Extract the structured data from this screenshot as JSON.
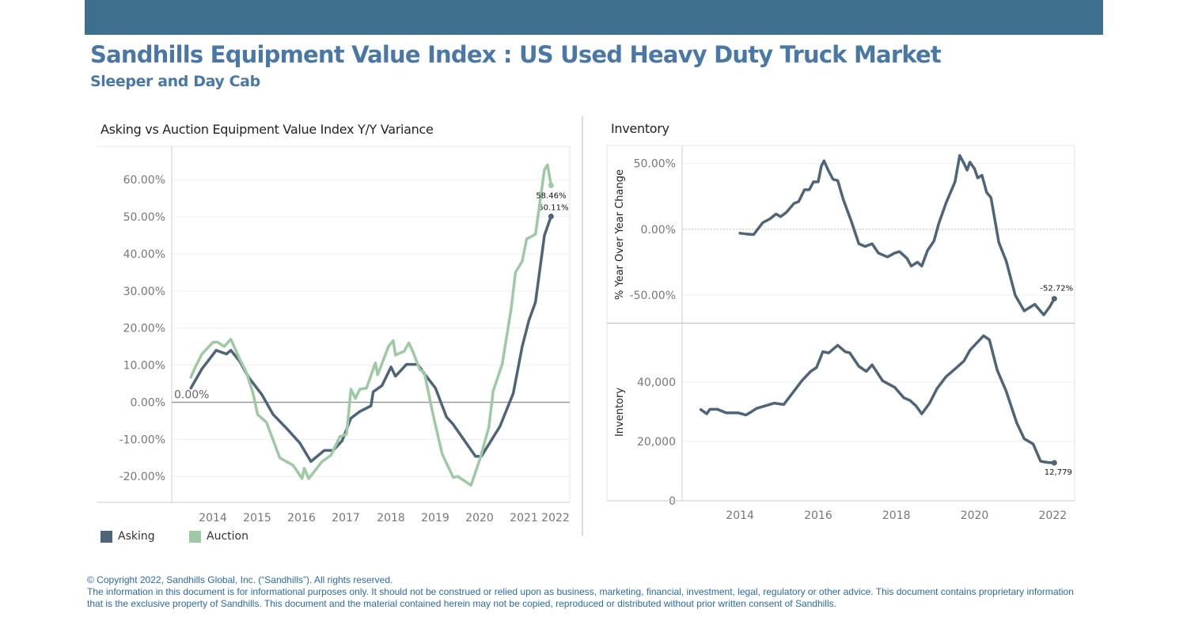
{
  "header": {
    "title": "Sandhills Equipment Value Index : US Used Heavy Duty Truck Market",
    "subtitle": "Sleeper and Day Cab"
  },
  "colors": {
    "topbar": "#3e6f8f",
    "asking": "#4e6479",
    "auction": "#9dc9a3",
    "title": "#4a78a6"
  },
  "chart_data": [
    {
      "type": "line",
      "title": "Asking vs Auction Equipment Value Index Y/Y Variance",
      "xlabel": "",
      "ylabel": "",
      "xlim": [
        2013.07,
        2022.02
      ],
      "ylim": [
        -27,
        69
      ],
      "x_ticks": [
        "2014",
        "2015",
        "2016",
        "2017",
        "2018",
        "2019",
        "2020",
        "2021",
        "2022"
      ],
      "y_ticks": [
        -20,
        -10,
        0,
        10,
        20,
        30,
        40,
        50,
        60
      ],
      "y_tick_labels": [
        "-20.00%",
        "-10.00%",
        "0.00%",
        "10.00%",
        "20.00%",
        "30.00%",
        "40.00%",
        "50.00%",
        "60.00%"
      ],
      "reference_line": {
        "value": 0,
        "label": "0.00%"
      },
      "grid": true,
      "legend": "bottom-left",
      "series": [
        {
          "name": "Asking",
          "color": "#4e6479",
          "end_label": "50.11%",
          "points": [
            [
              2013.5,
              3.8
            ],
            [
              2013.75,
              9
            ],
            [
              2014.07,
              14
            ],
            [
              2014.3,
              13
            ],
            [
              2014.4,
              14
            ],
            [
              2014.6,
              11
            ],
            [
              2014.8,
              6.7
            ],
            [
              2015.1,
              2
            ],
            [
              2015.35,
              -3.3
            ],
            [
              2015.65,
              -7
            ],
            [
              2015.95,
              -11
            ],
            [
              2016.2,
              -16
            ],
            [
              2016.5,
              -13
            ],
            [
              2016.7,
              -13
            ],
            [
              2016.9,
              -10.4
            ],
            [
              2017.1,
              -4.3
            ],
            [
              2017.3,
              -2.5
            ],
            [
              2017.55,
              -1
            ],
            [
              2017.6,
              2.8
            ],
            [
              2017.8,
              4.5
            ],
            [
              2018.0,
              9.5
            ],
            [
              2018.1,
              7
            ],
            [
              2018.35,
              10.2
            ],
            [
              2018.6,
              10.2
            ],
            [
              2018.75,
              7.7
            ],
            [
              2019.0,
              3.8
            ],
            [
              2019.25,
              -4
            ],
            [
              2019.4,
              -6
            ],
            [
              2019.9,
              -14.6
            ],
            [
              2020.03,
              -14.6
            ],
            [
              2020.25,
              -10.4
            ],
            [
              2020.45,
              -6.5
            ],
            [
              2020.75,
              2.4
            ],
            [
              2020.95,
              15
            ],
            [
              2021.1,
              22
            ],
            [
              2021.25,
              27
            ],
            [
              2021.45,
              45
            ],
            [
              2021.6,
              50.11
            ]
          ]
        },
        {
          "name": "Auction",
          "color": "#9dc9a3",
          "end_label": "58.46%",
          "points": [
            [
              2013.5,
              6.7
            ],
            [
              2013.6,
              9.5
            ],
            [
              2013.75,
              13
            ],
            [
              2014.0,
              16.2
            ],
            [
              2014.1,
              16.2
            ],
            [
              2014.25,
              15
            ],
            [
              2014.4,
              17
            ],
            [
              2014.6,
              11.6
            ],
            [
              2014.75,
              8
            ],
            [
              2014.9,
              2.4
            ],
            [
              2015.0,
              -3.3
            ],
            [
              2015.2,
              -5.4
            ],
            [
              2015.5,
              -15
            ],
            [
              2015.8,
              -17
            ],
            [
              2016.0,
              -20.6
            ],
            [
              2016.05,
              -17.8
            ],
            [
              2016.15,
              -20.6
            ],
            [
              2016.45,
              -16
            ],
            [
              2016.65,
              -14.3
            ],
            [
              2016.85,
              -9.3
            ],
            [
              2017.0,
              -8.6
            ],
            [
              2017.1,
              3.5
            ],
            [
              2017.2,
              1
            ],
            [
              2017.3,
              3.5
            ],
            [
              2017.45,
              3.8
            ],
            [
              2017.65,
              10.6
            ],
            [
              2017.7,
              7.4
            ],
            [
              2017.95,
              15.2
            ],
            [
              2018.05,
              16.6
            ],
            [
              2018.1,
              12.7
            ],
            [
              2018.3,
              13.8
            ],
            [
              2018.4,
              16
            ],
            [
              2018.5,
              13.4
            ],
            [
              2018.65,
              8.8
            ],
            [
              2018.75,
              8
            ],
            [
              2018.95,
              -3.6
            ],
            [
              2019.15,
              -13.9
            ],
            [
              2019.4,
              -20.3
            ],
            [
              2019.5,
              -20
            ],
            [
              2019.8,
              -22.4
            ],
            [
              2020.0,
              -15.3
            ],
            [
              2020.2,
              -6.8
            ],
            [
              2020.3,
              3.1
            ],
            [
              2020.5,
              10.2
            ],
            [
              2020.7,
              25
            ],
            [
              2020.8,
              35
            ],
            [
              2020.95,
              38
            ],
            [
              2021.05,
              44
            ],
            [
              2021.25,
              45.3
            ],
            [
              2021.45,
              62.7
            ],
            [
              2021.52,
              64
            ],
            [
              2021.6,
              58.46
            ]
          ]
        }
      ]
    },
    {
      "type": "line",
      "title": "Inventory",
      "ylabel": "% Year Over Year Change",
      "xlim": [
        2012.52,
        2022.56
      ],
      "ylim": [
        -71,
        63
      ],
      "y_ticks": [
        -50,
        0,
        50
      ],
      "y_tick_labels": [
        "-50.00%",
        "0.00%",
        "50.00%"
      ],
      "reference_line": {
        "value": 0
      },
      "grid": true,
      "series": [
        {
          "color": "#4e6479",
          "end_label": "-52.72%",
          "points": [
            [
              2014.0,
              -3
            ],
            [
              2014.15,
              -3.5
            ],
            [
              2014.35,
              -4
            ],
            [
              2014.58,
              5
            ],
            [
              2014.77,
              8
            ],
            [
              2014.92,
              11.6
            ],
            [
              2015.04,
              9.6
            ],
            [
              2015.19,
              13
            ],
            [
              2015.38,
              19.6
            ],
            [
              2015.5,
              21
            ],
            [
              2015.65,
              30
            ],
            [
              2015.77,
              30
            ],
            [
              2015.88,
              36
            ],
            [
              2016.0,
              36
            ],
            [
              2016.08,
              48
            ],
            [
              2016.15,
              52
            ],
            [
              2016.27,
              44
            ],
            [
              2016.38,
              38
            ],
            [
              2016.5,
              37
            ],
            [
              2016.65,
              22
            ],
            [
              2016.85,
              6
            ],
            [
              2017.04,
              -11
            ],
            [
              2017.2,
              -13
            ],
            [
              2017.38,
              -11
            ],
            [
              2017.54,
              -18
            ],
            [
              2017.77,
              -21
            ],
            [
              2017.96,
              -18
            ],
            [
              2018.08,
              -17
            ],
            [
              2018.27,
              -22
            ],
            [
              2018.38,
              -28
            ],
            [
              2018.54,
              -25
            ],
            [
              2018.65,
              -28
            ],
            [
              2018.8,
              -16
            ],
            [
              2018.96,
              -9
            ],
            [
              2019.08,
              4
            ],
            [
              2019.27,
              20
            ],
            [
              2019.5,
              36
            ],
            [
              2019.62,
              56
            ],
            [
              2019.73,
              50
            ],
            [
              2019.81,
              45
            ],
            [
              2019.88,
              51
            ],
            [
              2020.0,
              46
            ],
            [
              2020.08,
              39
            ],
            [
              2020.19,
              41
            ],
            [
              2020.31,
              28
            ],
            [
              2020.42,
              24
            ],
            [
              2020.62,
              -10
            ],
            [
              2020.81,
              -24
            ],
            [
              2021.04,
              -50
            ],
            [
              2021.27,
              -62
            ],
            [
              2021.54,
              -57
            ],
            [
              2021.77,
              -65
            ],
            [
              2021.92,
              -59
            ],
            [
              2022.04,
              -52.72
            ]
          ]
        }
      ]
    },
    {
      "type": "line",
      "ylabel": "Inventory",
      "xlim": [
        2012.52,
        2022.56
      ],
      "ylim": [
        0,
        59700
      ],
      "x_ticks": [
        "2014",
        "2016",
        "2018",
        "2020",
        "2022"
      ],
      "y_ticks": [
        0,
        20000,
        40000
      ],
      "y_tick_labels": [
        "0",
        "20,000",
        "40,000"
      ],
      "grid": true,
      "series": [
        {
          "color": "#4e6479",
          "end_label": "12,779",
          "points": [
            [
              2013.0,
              30700
            ],
            [
              2013.15,
              29300
            ],
            [
              2013.23,
              30800
            ],
            [
              2013.42,
              30800
            ],
            [
              2013.65,
              29600
            ],
            [
              2013.96,
              29600
            ],
            [
              2014.15,
              28900
            ],
            [
              2014.27,
              29800
            ],
            [
              2014.42,
              31100
            ],
            [
              2014.65,
              32000
            ],
            [
              2014.88,
              32900
            ],
            [
              2015.12,
              32400
            ],
            [
              2015.35,
              36400
            ],
            [
              2015.58,
              40400
            ],
            [
              2015.81,
              43600
            ],
            [
              2015.96,
              44900
            ],
            [
              2016.12,
              50200
            ],
            [
              2016.27,
              49800
            ],
            [
              2016.5,
              52400
            ],
            [
              2016.69,
              50200
            ],
            [
              2016.81,
              49800
            ],
            [
              2017.04,
              45300
            ],
            [
              2017.23,
              43600
            ],
            [
              2017.38,
              45800
            ],
            [
              2017.65,
              40400
            ],
            [
              2017.96,
              38200
            ],
            [
              2018.19,
              34700
            ],
            [
              2018.35,
              33800
            ],
            [
              2018.5,
              32000
            ],
            [
              2018.65,
              29300
            ],
            [
              2018.85,
              32900
            ],
            [
              2019.04,
              37800
            ],
            [
              2019.27,
              41800
            ],
            [
              2019.5,
              44400
            ],
            [
              2019.73,
              47100
            ],
            [
              2019.88,
              50700
            ],
            [
              2020.23,
              55600
            ],
            [
              2020.38,
              54200
            ],
            [
              2020.58,
              44000
            ],
            [
              2020.81,
              36900
            ],
            [
              2021.08,
              26200
            ],
            [
              2021.27,
              20900
            ],
            [
              2021.5,
              19100
            ],
            [
              2021.69,
              13300
            ],
            [
              2021.88,
              12900
            ],
            [
              2022.04,
              12779
            ]
          ]
        }
      ]
    }
  ],
  "legend": [
    {
      "label": "Asking"
    },
    {
      "label": "Auction"
    }
  ],
  "footer": {
    "line1": "© Copyright 2022, Sandhills Global, Inc. (“Sandhills”). All rights reserved.",
    "line2": "The information in this document is for informational purposes only.  It should not be construed or relied upon as business, marketing, financial, investment, legal, regulatory or other advice. This document contains proprietary information that is the exclusive property of Sandhills. This document and the material contained herein may not be copied, reproduced or distributed without prior written consent of Sandhills."
  }
}
